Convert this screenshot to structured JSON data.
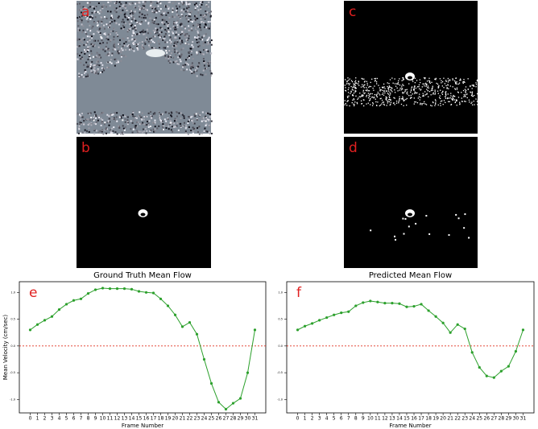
{
  "panels": [
    "a",
    "b",
    "c",
    "d"
  ],
  "chart_data": [
    {
      "type": "line",
      "label": "e",
      "title": "Ground Truth Mean Flow",
      "xlabel": "Frame Number",
      "ylabel": "Mean Velocity (cm/sec)",
      "x": [
        0,
        1,
        2,
        3,
        4,
        5,
        6,
        7,
        8,
        9,
        10,
        11,
        12,
        13,
        14,
        15,
        16,
        17,
        18,
        19,
        20,
        21,
        22,
        23,
        24,
        25,
        26,
        27,
        28,
        29,
        30,
        31
      ],
      "xlim": [
        -1.5,
        32.5
      ],
      "xticks": [
        0,
        1,
        2,
        3,
        4,
        5,
        6,
        7,
        8,
        9,
        10,
        11,
        12,
        13,
        14,
        15,
        16,
        17,
        18,
        19,
        20,
        21,
        22,
        23,
        24,
        25,
        26,
        27,
        28,
        29,
        30,
        31
      ],
      "ylim": [
        -1.25,
        1.2
      ],
      "yticks": [
        {
          "value": 1,
          "label": "1.0"
        },
        0.5,
        {
          "value": 0,
          "label": "0.0"
        },
        -0.5,
        {
          "value": -1,
          "label": "-1.0"
        }
      ],
      "hline": 0,
      "series": [
        {
          "color": "#2ca02c",
          "values": [
            0.3,
            0.4,
            0.48,
            0.55,
            0.68,
            0.78,
            0.85,
            0.88,
            0.98,
            1.05,
            1.08,
            1.07,
            1.07,
            1.07,
            1.06,
            1.02,
            1.0,
            0.99,
            0.88,
            0.75,
            0.58,
            0.36,
            0.44,
            0.22,
            -0.25,
            -0.7,
            -1.05,
            -1.18,
            -1.07,
            -0.98,
            -0.5,
            0.3
          ]
        }
      ]
    },
    {
      "type": "line",
      "label": "f",
      "title": "Predicted Mean Flow",
      "xlabel": "Frame Number",
      "x": [
        0,
        1,
        2,
        3,
        4,
        5,
        6,
        7,
        8,
        9,
        10,
        11,
        12,
        13,
        14,
        15,
        16,
        17,
        18,
        19,
        20,
        21,
        22,
        23,
        24,
        25,
        26,
        27,
        28,
        29,
        30,
        31
      ],
      "xlim": [
        -1.5,
        32.5
      ],
      "xticks": [
        0,
        1,
        2,
        3,
        4,
        5,
        6,
        7,
        8,
        9,
        10,
        11,
        12,
        13,
        14,
        15,
        16,
        17,
        18,
        19,
        20,
        21,
        22,
        23,
        24,
        25,
        26,
        27,
        28,
        29,
        30,
        31
      ],
      "ylim": [
        -1.25,
        1.2
      ],
      "yticks": [
        {
          "value": 1,
          "label": "1.0"
        },
        0.5,
        {
          "value": 0,
          "label": "0.0"
        },
        -0.5,
        {
          "value": -1,
          "label": "-1.0"
        }
      ],
      "hline": 0,
      "series": [
        {
          "color": "#2ca02c",
          "values": [
            0.3,
            0.37,
            0.42,
            0.48,
            0.53,
            0.58,
            0.62,
            0.64,
            0.75,
            0.81,
            0.84,
            0.82,
            0.8,
            0.8,
            0.79,
            0.73,
            0.74,
            0.78,
            0.66,
            0.55,
            0.43,
            0.25,
            0.4,
            0.32,
            -0.12,
            -0.4,
            -0.56,
            -0.59,
            -0.47,
            -0.38,
            -0.1,
            0.3
          ]
        }
      ]
    }
  ]
}
